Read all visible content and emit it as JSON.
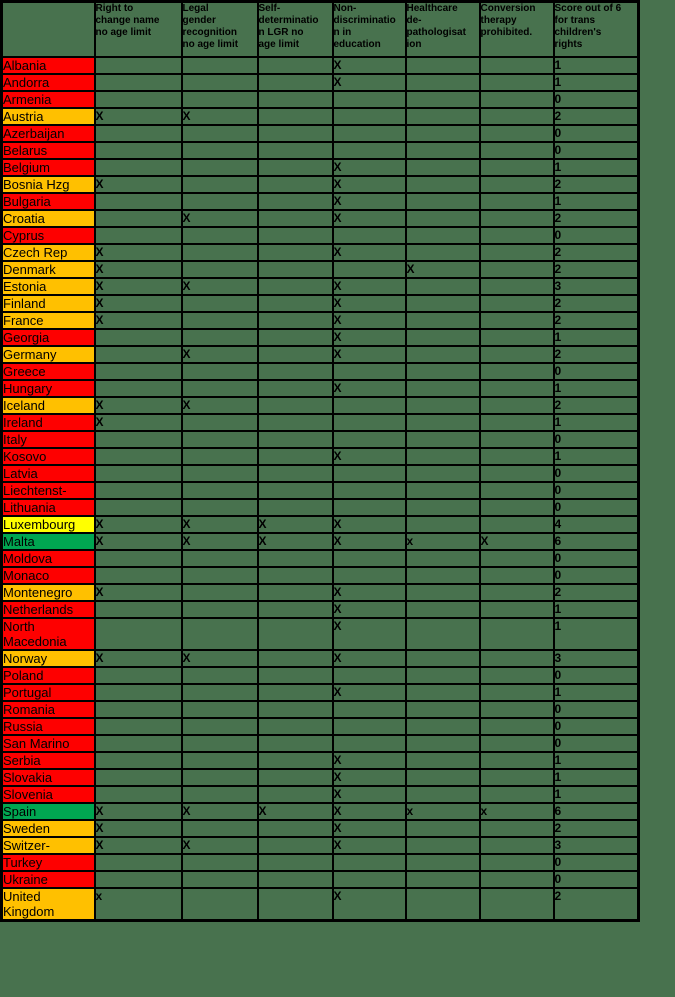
{
  "colors": {
    "page_background": "#48724E",
    "border": "#000000",
    "red": "#FE0000",
    "amber": "#FFC000",
    "yellow": "#FFFF00",
    "green": "#00A651",
    "text": "#000000"
  },
  "chart_data": {
    "type": "table",
    "description_columns": [
      "Right to change name no age limit",
      "Legal gender recognition no age limit",
      "Self-determination LGR no age limit",
      "Non-discrimination in education",
      "Healthcare de-pathologisation",
      "Conversion therapy prohibited.",
      "Score out of 6 for trans children's rights"
    ],
    "header": {
      "corner_label": "",
      "columns": [
        "Right to\nchange name\nno age limit",
        "Legal\ngender\nrecognition\nno age limit",
        "Self-\ndeterminatio\nn LGR no\nage limit",
        "Non-\ndiscriminatio\nn in\neducation",
        "Healthcare\nde-\npathologisat\nion",
        "Conversion\ntherapy\nprohibited.",
        "Score out of 6\nfor trans\nchildren's\nrights"
      ]
    },
    "rows": [
      {
        "country": "Albania",
        "color": "red",
        "marks": [
          "",
          "",
          "",
          "X",
          "",
          ""
        ],
        "score": "1"
      },
      {
        "country": "Andorra",
        "color": "red",
        "marks": [
          "",
          "",
          "",
          "X",
          "",
          ""
        ],
        "score": "1"
      },
      {
        "country": "Armenia",
        "color": "red",
        "marks": [
          "",
          "",
          "",
          "",
          "",
          ""
        ],
        "score": "0"
      },
      {
        "country": "Austria",
        "color": "amber",
        "marks": [
          "X",
          "X",
          "",
          "",
          "",
          ""
        ],
        "score": "2"
      },
      {
        "country": "Azerbaijan",
        "color": "red",
        "marks": [
          "",
          "",
          "",
          "",
          "",
          ""
        ],
        "score": "0"
      },
      {
        "country": "Belarus",
        "color": "red",
        "marks": [
          "",
          "",
          "",
          "",
          "",
          ""
        ],
        "score": "0"
      },
      {
        "country": "Belgium",
        "color": "red",
        "marks": [
          "",
          "",
          "",
          "X",
          "",
          ""
        ],
        "score": "1"
      },
      {
        "country": "Bosnia Hzg",
        "color": "amber",
        "marks": [
          "X",
          "",
          "",
          "X",
          "",
          ""
        ],
        "score": "2"
      },
      {
        "country": "Bulgaria",
        "color": "red",
        "marks": [
          "",
          "",
          "",
          "X",
          "",
          ""
        ],
        "score": "1"
      },
      {
        "country": "Croatia",
        "color": "amber",
        "marks": [
          "",
          "X",
          "",
          "X",
          "",
          ""
        ],
        "score": "2"
      },
      {
        "country": "Cyprus",
        "color": "red",
        "marks": [
          "",
          "",
          "",
          "",
          "",
          ""
        ],
        "score": "0"
      },
      {
        "country": "Czech Rep",
        "color": "amber",
        "marks": [
          "X",
          "",
          "",
          "X",
          "",
          ""
        ],
        "score": "2"
      },
      {
        "country": "Denmark",
        "color": "amber",
        "marks": [
          "X",
          "",
          "",
          "",
          "X",
          ""
        ],
        "score": "2"
      },
      {
        "country": "Estonia",
        "color": "amber",
        "marks": [
          "X",
          "X",
          "",
          "X",
          "",
          ""
        ],
        "score": "3"
      },
      {
        "country": "Finland",
        "color": "amber",
        "marks": [
          "X",
          "",
          "",
          "X",
          "",
          ""
        ],
        "score": "2"
      },
      {
        "country": "France",
        "color": "amber",
        "marks": [
          "X",
          "",
          "",
          "X",
          "",
          ""
        ],
        "score": "2"
      },
      {
        "country": "Georgia",
        "color": "red",
        "marks": [
          "",
          "",
          "",
          "X",
          "",
          ""
        ],
        "score": "1"
      },
      {
        "country": "Germany",
        "color": "amber",
        "marks": [
          "",
          "X",
          "",
          "X",
          "",
          ""
        ],
        "score": "2"
      },
      {
        "country": "Greece",
        "color": "red",
        "marks": [
          "",
          "",
          "",
          "",
          "",
          ""
        ],
        "score": "0"
      },
      {
        "country": "Hungary",
        "color": "red",
        "marks": [
          "",
          "",
          "",
          "X",
          "",
          ""
        ],
        "score": "1"
      },
      {
        "country": "Iceland",
        "color": "amber",
        "marks": [
          "X",
          "X",
          "",
          "",
          "",
          ""
        ],
        "score": "2"
      },
      {
        "country": "Ireland",
        "color": "red",
        "marks": [
          "X",
          "",
          "",
          "",
          "",
          ""
        ],
        "score": "1"
      },
      {
        "country": "Italy",
        "color": "red",
        "marks": [
          "",
          "",
          "",
          "",
          "",
          ""
        ],
        "score": "0"
      },
      {
        "country": "Kosovo",
        "color": "red",
        "marks": [
          "",
          "",
          "",
          "X",
          "",
          ""
        ],
        "score": "1"
      },
      {
        "country": "Latvia",
        "color": "red",
        "marks": [
          "",
          "",
          "",
          "",
          "",
          ""
        ],
        "score": "0"
      },
      {
        "country": "Liechtenst-",
        "color": "red",
        "marks": [
          "",
          "",
          "",
          "",
          "",
          ""
        ],
        "score": "0"
      },
      {
        "country": "Lithuania",
        "color": "red",
        "marks": [
          "",
          "",
          "",
          "",
          "",
          ""
        ],
        "score": "0"
      },
      {
        "country": "Luxembourg",
        "color": "yellow",
        "marks": [
          "X",
          "X",
          "X",
          "X",
          "",
          ""
        ],
        "score": "4"
      },
      {
        "country": "Malta",
        "color": "green",
        "marks": [
          "X",
          "X",
          "X",
          "X",
          "x",
          "X"
        ],
        "score": "6"
      },
      {
        "country": "Moldova",
        "color": "red",
        "marks": [
          "",
          "",
          "",
          "",
          "",
          ""
        ],
        "score": "0"
      },
      {
        "country": "Monaco",
        "color": "red",
        "marks": [
          "",
          "",
          "",
          "",
          "",
          ""
        ],
        "score": "0"
      },
      {
        "country": "Montenegro",
        "color": "amber",
        "marks": [
          "X",
          "",
          "",
          "X",
          "",
          ""
        ],
        "score": "2"
      },
      {
        "country": "Netherlands",
        "color": "red",
        "marks": [
          "",
          "",
          "",
          "X",
          "",
          ""
        ],
        "score": "1"
      },
      {
        "country": "North Macedonia",
        "color": "red",
        "marks": [
          "",
          "",
          "",
          "X",
          "",
          ""
        ],
        "score": "1"
      },
      {
        "country": "Norway",
        "color": "amber",
        "marks": [
          "X",
          "X",
          "",
          "X",
          "",
          ""
        ],
        "score": "3"
      },
      {
        "country": "Poland",
        "color": "red",
        "marks": [
          "",
          "",
          "",
          "",
          "",
          ""
        ],
        "score": "0"
      },
      {
        "country": "Portugal",
        "color": "red",
        "marks": [
          "",
          "",
          "",
          "X",
          "",
          ""
        ],
        "score": "1"
      },
      {
        "country": "Romania",
        "color": "red",
        "marks": [
          "",
          "",
          "",
          "",
          "",
          ""
        ],
        "score": "0"
      },
      {
        "country": "Russia",
        "color": "red",
        "marks": [
          "",
          "",
          "",
          "",
          "",
          ""
        ],
        "score": "0"
      },
      {
        "country": "San Marino",
        "color": "red",
        "marks": [
          "",
          "",
          "",
          "",
          "",
          ""
        ],
        "score": "0"
      },
      {
        "country": "Serbia",
        "color": "red",
        "marks": [
          "",
          "",
          "",
          "X",
          "",
          ""
        ],
        "score": "1"
      },
      {
        "country": "Slovakia",
        "color": "red",
        "marks": [
          "",
          "",
          "",
          "X",
          "",
          ""
        ],
        "score": "1"
      },
      {
        "country": "Slovenia",
        "color": "red",
        "marks": [
          "",
          "",
          "",
          "X",
          "",
          ""
        ],
        "score": "1"
      },
      {
        "country": "Spain",
        "color": "green",
        "marks": [
          "X",
          "X",
          "X",
          "X",
          "x",
          "x"
        ],
        "score": "6"
      },
      {
        "country": "Sweden",
        "color": "amber",
        "marks": [
          "X",
          "",
          "",
          "X",
          "",
          ""
        ],
        "score": "2"
      },
      {
        "country": "Switzer-",
        "color": "amber",
        "marks": [
          "X",
          "X",
          "",
          "X",
          "",
          ""
        ],
        "score": "3"
      },
      {
        "country": "Turkey",
        "color": "red",
        "marks": [
          "",
          "",
          "",
          "",
          "",
          ""
        ],
        "score": "0"
      },
      {
        "country": "Ukraine",
        "color": "red",
        "marks": [
          "",
          "",
          "",
          "",
          "",
          ""
        ],
        "score": "0"
      },
      {
        "country": "United Kingdom",
        "color": "amber",
        "marks": [
          "x",
          "",
          "",
          "X",
          "",
          ""
        ],
        "score": "2"
      }
    ]
  }
}
